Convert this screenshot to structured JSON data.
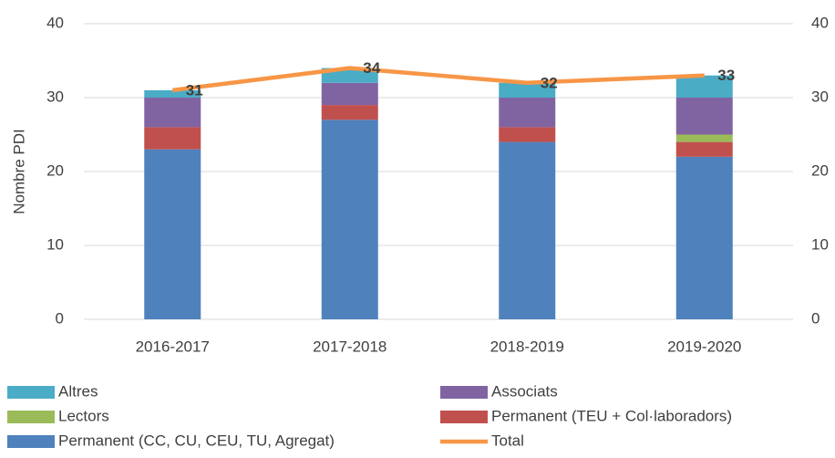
{
  "chart_data": {
    "type": "bar",
    "y_label": "Nombre PDI",
    "categories": [
      "2016-2017",
      "2017-2018",
      "2018-2019",
      "2019-2020"
    ],
    "series": [
      {
        "name": "Permanent (CC, CU, CEU, TU, Agregat)",
        "color": "#4f81bd",
        "values": [
          23,
          27,
          24,
          22
        ]
      },
      {
        "name": "Permanent (TEU + Col·laboradors)",
        "color": "#c0504d",
        "values": [
          3,
          2,
          2,
          2
        ]
      },
      {
        "name": "Lectors",
        "color": "#9bbb59",
        "values": [
          0,
          0,
          0,
          1
        ]
      },
      {
        "name": "Associats",
        "color": "#8064a2",
        "values": [
          4,
          3,
          4,
          5
        ]
      },
      {
        "name": "Altres",
        "color": "#4bacc6",
        "values": [
          1,
          2,
          2,
          3
        ]
      },
      {
        "name": "Total",
        "type": "line",
        "axis": "y2",
        "color": "#f79646",
        "values": [
          31,
          34,
          32,
          33
        ]
      }
    ],
    "stacked": true,
    "ylim": [
      0,
      40
    ],
    "yticks": [
      0,
      10,
      20,
      30,
      40
    ],
    "y2lim": [
      0,
      40
    ],
    "y2ticks": [
      0,
      10,
      20,
      30,
      40
    ],
    "grid": true
  }
}
